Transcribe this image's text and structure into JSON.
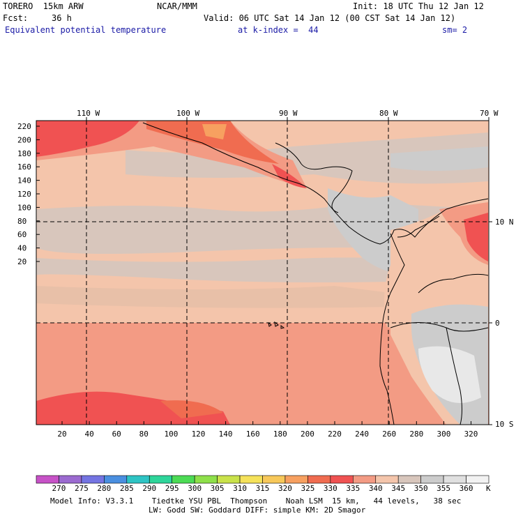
{
  "header": {
    "model_name": "TORERO  15km ARW",
    "org": "NCAR/MMM",
    "init": "Init: 18 UTC Thu 12 Jan 12",
    "fcst_label": "Fcst:",
    "fcst_value": "36 h",
    "valid": "Valid: 06 UTC Sat 14 Jan 12 (00 CST Sat 14 Jan 12)",
    "field": "Equivalent potential temperature",
    "level": "at k-index =  44",
    "smoothing": "sm= 2"
  },
  "map": {
    "lon_labels": [
      "110 W",
      "100 W",
      "90 W",
      "80 W",
      "70 W"
    ],
    "lat_labels": [
      "10 N",
      "0",
      "10 S"
    ],
    "y_ticks": [
      "220",
      "200",
      "180",
      "160",
      "140",
      "120",
      "100",
      "80",
      "60",
      "40",
      "20"
    ],
    "x_ticks": [
      "20",
      "40",
      "60",
      "80",
      "100",
      "120",
      "140",
      "160",
      "180",
      "200",
      "220",
      "240",
      "260",
      "280",
      "300",
      "320"
    ]
  },
  "colorbar": {
    "labels": [
      "270",
      "275",
      "280",
      "285",
      "290",
      "295",
      "300",
      "305",
      "310",
      "315",
      "320",
      "325",
      "330",
      "335",
      "340",
      "345",
      "350",
      "355",
      "360"
    ],
    "unit": "K",
    "colors": [
      "#c752c7",
      "#9b6ad0",
      "#7474e2",
      "#4a8fe0",
      "#2ec4c4",
      "#2ed59a",
      "#4cdb55",
      "#8ee04a",
      "#c9e24a",
      "#f5e25a",
      "#f7c85a",
      "#f7a060",
      "#f06c50",
      "#f05252",
      "#f39b84",
      "#f4c5ab",
      "#d8c6bc",
      "#cccccc",
      "#e0e0e0",
      "#f2f2f2"
    ]
  },
  "footer": {
    "line1": "Model Info: V3.3.1    Tiedtke YSU PBL  Thompson    Noah LSM  15 km,   44 levels,   38 sec",
    "line2": "LW: Godd SW: Goddard DIFF: simple KM: 2D Smagor"
  }
}
